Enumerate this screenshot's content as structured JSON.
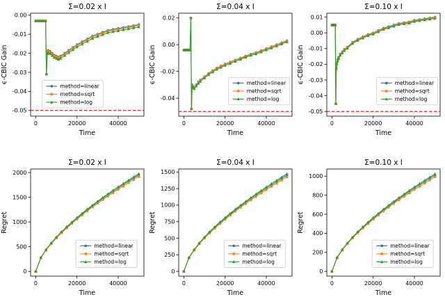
{
  "page": {
    "background": "#ffffff"
  },
  "colors": {
    "linear": "#1f77b4",
    "sqrt": "#ff7f0e",
    "log": "#2ca02c",
    "threshold": "#dd2222"
  },
  "legend_labels": [
    "method=linear",
    "method=sqrt",
    "method=log"
  ],
  "chart_data": [
    {
      "type": "line",
      "title": "Σ=0.02 x I",
      "xlabel": "Time",
      "ylabel": "ϵ-CBIC Gain",
      "xlim": [
        -2500,
        52500
      ],
      "ylim": [
        -0.053,
        0.001
      ],
      "xticks": [
        0,
        20000,
        40000
      ],
      "xtick_labels": [
        "0",
        "20000",
        "40000"
      ],
      "yticks": [
        0.0,
        -0.01,
        -0.02,
        -0.03,
        -0.04,
        -0.05
      ],
      "ytick_labels": [
        "0.00",
        "-0.01",
        "-0.02",
        "-0.03",
        "-0.04",
        "-0.05"
      ],
      "threshold": -0.05,
      "legend": {
        "fx": 0.1,
        "fy": 0.08
      },
      "x": [
        0,
        1000,
        2000,
        3000,
        4000,
        4800,
        5200,
        5600,
        6000,
        7000,
        8000,
        9000,
        10000,
        11000,
        12000,
        14000,
        16000,
        18000,
        20000,
        22500,
        25000,
        27500,
        30000,
        32500,
        35000,
        37500,
        40000,
        42500,
        45000,
        47500,
        50000
      ],
      "series": [
        {
          "name": "method=linear",
          "marker": "circle",
          "color": "#1f77b4",
          "values": [
            -0.003,
            -0.003,
            -0.003,
            -0.003,
            -0.003,
            -0.003,
            -0.031,
            -0.019,
            -0.0185,
            -0.019,
            -0.02,
            -0.021,
            -0.0215,
            -0.022,
            -0.0215,
            -0.02,
            -0.0185,
            -0.017,
            -0.0155,
            -0.014,
            -0.0125,
            -0.011,
            -0.01,
            -0.009,
            -0.008,
            -0.0075,
            -0.007,
            -0.0065,
            -0.006,
            -0.0055,
            -0.005
          ]
        },
        {
          "name": "method=sqrt",
          "marker": "square",
          "color": "#ff7f0e",
          "values": [
            -0.003,
            -0.003,
            -0.003,
            -0.003,
            -0.003,
            -0.003,
            -0.031,
            -0.0194,
            -0.0189,
            -0.0194,
            -0.0204,
            -0.0214,
            -0.0219,
            -0.0224,
            -0.0219,
            -0.0204,
            -0.0189,
            -0.0174,
            -0.0159,
            -0.0144,
            -0.0129,
            -0.0114,
            -0.0104,
            -0.0094,
            -0.0084,
            -0.0079,
            -0.0074,
            -0.0069,
            -0.0064,
            -0.0059,
            -0.0054
          ]
        },
        {
          "name": "method=log",
          "marker": "triangle",
          "color": "#2ca02c",
          "values": [
            -0.003,
            -0.003,
            -0.003,
            -0.003,
            -0.003,
            -0.003,
            -0.031,
            -0.0202,
            -0.0197,
            -0.0202,
            -0.0212,
            -0.0222,
            -0.0227,
            -0.0232,
            -0.0227,
            -0.0212,
            -0.0197,
            -0.0182,
            -0.0167,
            -0.0152,
            -0.0137,
            -0.0122,
            -0.0112,
            -0.0102,
            -0.0092,
            -0.0087,
            -0.0082,
            -0.0077,
            -0.0072,
            -0.0067,
            -0.0062
          ]
        }
      ]
    },
    {
      "type": "line",
      "title": "Σ=0.04 x I",
      "xlabel": "Time",
      "ylabel": "ϵ-CBIC Gain",
      "xlim": [
        -2500,
        52500
      ],
      "ylim": [
        -0.0535,
        0.0235
      ],
      "xticks": [
        0,
        20000,
        40000
      ],
      "xtick_labels": [
        "0",
        "20000",
        "40000"
      ],
      "yticks": [
        0.02,
        0.0,
        -0.02,
        -0.04
      ],
      "ytick_labels": [
        "0.02",
        "0.00",
        "-0.02",
        "-0.04"
      ],
      "threshold": -0.05,
      "legend": {
        "fx": 0.44,
        "fy": 0.11
      },
      "x": [
        0,
        500,
        1000,
        1500,
        2000,
        2500,
        3000,
        3400,
        3700,
        4000,
        4500,
        5000,
        6000,
        7000,
        8000,
        10000,
        12000,
        14000,
        16000,
        18000,
        20000,
        22500,
        25000,
        27500,
        30000,
        32500,
        35000,
        37500,
        40000,
        42500,
        45000,
        47500,
        50000
      ],
      "series": [
        {
          "name": "method=linear",
          "marker": "circle",
          "color": "#1f77b4",
          "values": [
            -0.004,
            -0.004,
            -0.004,
            -0.004,
            -0.004,
            -0.004,
            -0.004,
            0.02,
            -0.048,
            -0.03,
            -0.031,
            -0.032,
            -0.03,
            -0.028,
            -0.0265,
            -0.024,
            -0.0215,
            -0.0195,
            -0.0175,
            -0.016,
            -0.0145,
            -0.013,
            -0.0115,
            -0.01,
            -0.0085,
            -0.007,
            -0.006,
            -0.0045,
            -0.003,
            -0.0015,
            0.0,
            0.0015,
            0.003
          ]
        },
        {
          "name": "method=sqrt",
          "marker": "square",
          "color": "#ff7f0e",
          "values": [
            -0.004,
            -0.004,
            -0.004,
            -0.004,
            -0.004,
            -0.004,
            -0.004,
            0.02,
            -0.048,
            -0.0303,
            -0.0313,
            -0.0323,
            -0.0303,
            -0.0283,
            -0.0268,
            -0.0243,
            -0.0218,
            -0.0198,
            -0.0178,
            -0.0163,
            -0.0148,
            -0.0133,
            -0.0118,
            -0.0103,
            -0.0088,
            -0.0073,
            -0.0063,
            -0.0048,
            -0.0033,
            -0.0018,
            -0.0003,
            0.0012,
            0.0027
          ]
        },
        {
          "name": "method=log",
          "marker": "triangle",
          "color": "#2ca02c",
          "values": [
            -0.004,
            -0.004,
            -0.004,
            -0.004,
            -0.004,
            -0.004,
            -0.004,
            0.02,
            -0.048,
            -0.031,
            -0.032,
            -0.033,
            -0.031,
            -0.029,
            -0.0275,
            -0.025,
            -0.0225,
            -0.0205,
            -0.0185,
            -0.017,
            -0.0155,
            -0.014,
            -0.0125,
            -0.011,
            -0.0095,
            -0.008,
            -0.007,
            -0.0055,
            -0.004,
            -0.0025,
            -0.001,
            0.0005,
            0.002
          ]
        }
      ]
    },
    {
      "type": "line",
      "title": "Σ=0.10 x I",
      "xlabel": "Time",
      "ylabel": "ϵ-CBIC Gain",
      "xlim": [
        -2500,
        52500
      ],
      "ylim": [
        -0.053,
        0.0125
      ],
      "xticks": [
        0,
        20000,
        40000
      ],
      "xtick_labels": [
        "0",
        "20000",
        "40000"
      ],
      "yticks": [
        0.01,
        0.0,
        -0.01,
        -0.02,
        -0.03,
        -0.04,
        -0.05
      ],
      "ytick_labels": [
        "0.01",
        "0.00",
        "-0.01",
        "-0.02",
        "-0.03",
        "-0.04",
        "-0.05"
      ],
      "threshold": -0.05,
      "legend": {
        "fx": 0.44,
        "fy": 0.11
      },
      "x": [
        0,
        400,
        800,
        1200,
        1600,
        1900,
        2100,
        2400,
        2800,
        3200,
        4000,
        5000,
        6000,
        7500,
        10000,
        12500,
        15000,
        17500,
        20000,
        22500,
        25000,
        27500,
        30000,
        32500,
        35000,
        37500,
        40000,
        42500,
        45000,
        47500,
        50000
      ],
      "series": [
        {
          "name": "method=linear",
          "marker": "circle",
          "color": "#1f77b4",
          "values": [
            0.005,
            0.005,
            0.005,
            0.005,
            0.005,
            -0.045,
            -0.022,
            -0.019,
            -0.017,
            -0.0155,
            -0.0135,
            -0.012,
            -0.0105,
            -0.009,
            -0.006,
            -0.004,
            -0.0025,
            -0.001,
            0.0,
            0.0015,
            0.003,
            0.004,
            0.005,
            0.006,
            0.0065,
            0.007,
            0.008,
            0.0085,
            0.009,
            0.0095,
            0.01
          ]
        },
        {
          "name": "method=sqrt",
          "marker": "square",
          "color": "#ff7f0e",
          "values": [
            0.005,
            0.005,
            0.005,
            0.005,
            0.005,
            -0.045,
            -0.0223,
            -0.0193,
            -0.0173,
            -0.0158,
            -0.0138,
            -0.0123,
            -0.0108,
            -0.0093,
            -0.0063,
            -0.0043,
            -0.0028,
            -0.0013,
            -0.0003,
            0.0012,
            0.0027,
            0.0037,
            0.0047,
            0.0057,
            0.0062,
            0.0067,
            0.0077,
            0.0082,
            0.0087,
            0.0092,
            0.0097
          ]
        },
        {
          "name": "method=log",
          "marker": "triangle",
          "color": "#2ca02c",
          "values": [
            0.005,
            0.005,
            0.005,
            0.005,
            0.005,
            -0.045,
            -0.0228,
            -0.0198,
            -0.0178,
            -0.0163,
            -0.0143,
            -0.0128,
            -0.0113,
            -0.0098,
            -0.0068,
            -0.0048,
            -0.0033,
            -0.0018,
            -0.0008,
            0.0007,
            0.0022,
            0.0032,
            0.0042,
            0.0052,
            0.0057,
            0.0062,
            0.0072,
            0.0077,
            0.0082,
            0.0087,
            0.0092
          ]
        }
      ]
    },
    {
      "type": "line",
      "title": "Σ=0.02 x I",
      "xlabel": "Time",
      "ylabel": "Regret",
      "xlim": [
        -2500,
        52500
      ],
      "ylim": [
        -95,
        2070
      ],
      "xticks": [
        0,
        20000,
        40000
      ],
      "xtick_labels": [
        "0",
        "20000",
        "40000"
      ],
      "yticks": [
        0,
        500,
        1000,
        1500,
        2000
      ],
      "ytick_labels": [
        "0",
        "500",
        "1000",
        "1500",
        "2000"
      ],
      "threshold": null,
      "legend": {
        "fx": 0.4,
        "fy": 0.08
      },
      "x": [
        0,
        2500,
        5000,
        7500,
        10000,
        12500,
        15000,
        17500,
        20000,
        22500,
        25000,
        27500,
        30000,
        32500,
        35000,
        37500,
        40000,
        42500,
        45000,
        47500,
        50000
      ],
      "series": [
        {
          "name": "method=linear",
          "marker": "circle",
          "color": "#1f77b4",
          "values": [
            0,
            278,
            436,
            568,
            685,
            792,
            891,
            985,
            1074,
            1160,
            1243,
            1322,
            1399,
            1474,
            1546,
            1617,
            1687,
            1755,
            1821,
            1886,
            1950
          ]
        },
        {
          "name": "method=sqrt",
          "marker": "square",
          "color": "#ff7f0e",
          "values": [
            0,
            272,
            428,
            558,
            673,
            778,
            876,
            968,
            1056,
            1140,
            1222,
            1300,
            1376,
            1449,
            1521,
            1590,
            1659,
            1726,
            1791,
            1855,
            1918
          ]
        },
        {
          "name": "method=log",
          "marker": "triangle",
          "color": "#2ca02c",
          "values": [
            0,
            282,
            442,
            576,
            694,
            803,
            903,
            998,
            1088,
            1175,
            1259,
            1339,
            1417,
            1493,
            1566,
            1638,
            1708,
            1777,
            1844,
            1910,
            1975
          ]
        }
      ]
    },
    {
      "type": "line",
      "title": "Σ=0.04 x I",
      "xlabel": "Time",
      "ylabel": "Regret",
      "xlim": [
        -2500,
        52500
      ],
      "ylim": [
        -72,
        1545
      ],
      "xticks": [
        0,
        20000,
        40000
      ],
      "xtick_labels": [
        "0",
        "20000",
        "40000"
      ],
      "yticks": [
        0,
        250,
        500,
        750,
        1000,
        1250,
        1500
      ],
      "ytick_labels": [
        "0",
        "250",
        "500",
        "750",
        "1000",
        "1250",
        "1500"
      ],
      "threshold": null,
      "legend": {
        "fx": 0.4,
        "fy": 0.08
      },
      "x": [
        0,
        2500,
        5000,
        7500,
        10000,
        12500,
        15000,
        17500,
        20000,
        22500,
        25000,
        27500,
        30000,
        32500,
        35000,
        37500,
        40000,
        42500,
        45000,
        47500,
        50000
      ],
      "series": [
        {
          "name": "method=linear",
          "marker": "circle",
          "color": "#1f77b4",
          "values": [
            0,
            207,
            324,
            422,
            509,
            589,
            663,
            733,
            799,
            863,
            924,
            983,
            1040,
            1096,
            1150,
            1202,
            1254,
            1305,
            1354,
            1403,
            1450
          ]
        },
        {
          "name": "method=sqrt",
          "marker": "square",
          "color": "#ff7f0e",
          "values": [
            0,
            203,
            318,
            414,
            500,
            578,
            651,
            720,
            785,
            848,
            908,
            966,
            1022,
            1077,
            1130,
            1181,
            1232,
            1282,
            1330,
            1378,
            1425
          ]
        },
        {
          "name": "method=log",
          "marker": "triangle",
          "color": "#2ca02c",
          "values": [
            0,
            210,
            329,
            429,
            517,
            598,
            673,
            744,
            811,
            876,
            938,
            998,
            1056,
            1112,
            1167,
            1220,
            1273,
            1324,
            1374,
            1424,
            1472
          ]
        }
      ]
    },
    {
      "type": "line",
      "title": "Σ=0.10 x I",
      "xlabel": "Time",
      "ylabel": "Regret",
      "xlim": [
        -2500,
        52500
      ],
      "ylim": [
        -50,
        1075
      ],
      "xticks": [
        0,
        20000,
        40000
      ],
      "xtick_labels": [
        "0",
        "20000",
        "40000"
      ],
      "yticks": [
        0,
        200,
        400,
        600,
        800,
        1000
      ],
      "ytick_labels": [
        "0",
        "200",
        "400",
        "600",
        "800",
        "1000"
      ],
      "threshold": null,
      "legend": {
        "fx": 0.4,
        "fy": 0.08
      },
      "x": [
        0,
        2500,
        5000,
        7500,
        10000,
        12500,
        15000,
        17500,
        20000,
        22500,
        25000,
        27500,
        30000,
        32500,
        35000,
        37500,
        40000,
        42500,
        45000,
        47500,
        50000
      ],
      "series": [
        {
          "name": "method=linear",
          "marker": "circle",
          "color": "#1f77b4",
          "values": [
            0,
            144,
            226,
            294,
            355,
            410,
            462,
            510,
            556,
            601,
            644,
            685,
            725,
            763,
            801,
            838,
            874,
            909,
            943,
            977,
            1010
          ]
        },
        {
          "name": "method=sqrt",
          "marker": "square",
          "color": "#ff7f0e",
          "values": [
            0,
            141,
            222,
            289,
            349,
            403,
            454,
            501,
            547,
            591,
            633,
            673,
            713,
            750,
            787,
            824,
            859,
            894,
            927,
            961,
            993
          ]
        },
        {
          "name": "method=log",
          "marker": "triangle",
          "color": "#2ca02c",
          "values": [
            0,
            146,
            229,
            298,
            360,
            416,
            468,
            517,
            564,
            609,
            653,
            695,
            735,
            774,
            812,
            850,
            886,
            921,
            956,
            990,
            1024
          ]
        }
      ]
    }
  ]
}
